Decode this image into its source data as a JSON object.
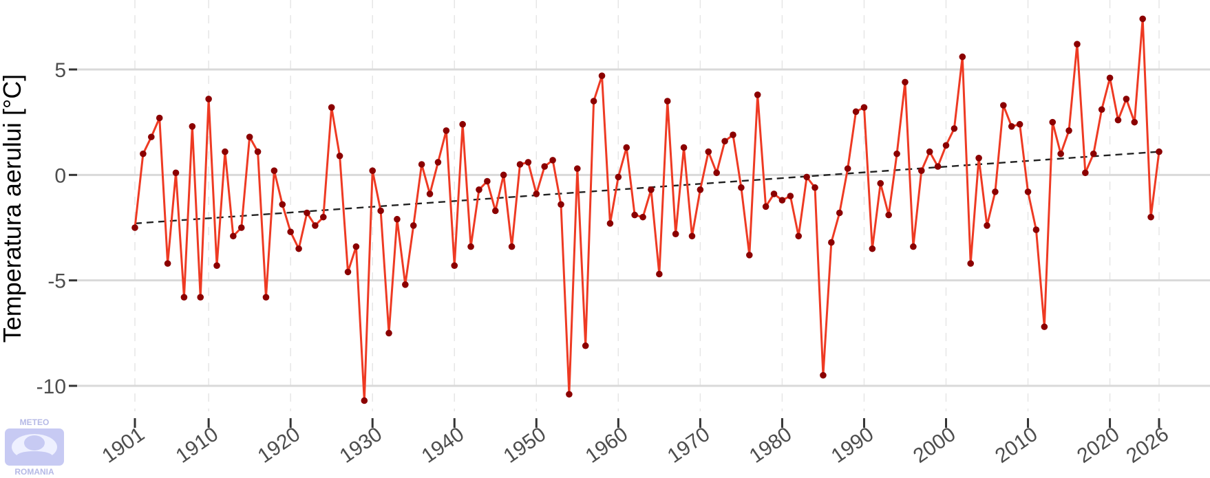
{
  "chart_data": {
    "type": "line",
    "title": "",
    "xlabel": "",
    "ylabel": "Temperatura aerului [°C]",
    "xlim": [
      1901,
      2026
    ],
    "ylim": [
      -11,
      8.2
    ],
    "x_ticks": [
      1901,
      1910,
      1920,
      1930,
      1940,
      1950,
      1960,
      1970,
      1980,
      1990,
      2000,
      2010,
      2020,
      2026
    ],
    "y_ticks": [
      -10,
      -5,
      0,
      5
    ],
    "grid": true,
    "legend": "none",
    "colors": {
      "line": "#ee3a23",
      "points": "#8b0000",
      "trend": "#222222",
      "grid": "#d9d9d9"
    },
    "series": [
      {
        "x": [
          1901,
          1902,
          1903,
          1904,
          1905,
          1906,
          1907,
          1908,
          1909,
          1910,
          1911,
          1912,
          1913,
          1914,
          1915,
          1916,
          1917,
          1918,
          1919,
          1920,
          1921,
          1922,
          1923,
          1924,
          1925,
          1926,
          1927,
          1928,
          1929,
          1930,
          1931,
          1932,
          1933,
          1934,
          1935,
          1936,
          1937,
          1938,
          1939,
          1940,
          1941,
          1942,
          1943,
          1944,
          1945,
          1946,
          1947,
          1948,
          1949,
          1950,
          1951,
          1952,
          1953,
          1954,
          1955,
          1956,
          1957,
          1958,
          1959,
          1960,
          1961,
          1962,
          1963,
          1964,
          1965,
          1966,
          1967,
          1968,
          1969,
          1970,
          1971,
          1972,
          1973,
          1974,
          1975,
          1976,
          1977,
          1978,
          1979,
          1980,
          1981,
          1982,
          1983,
          1984,
          1985,
          1986,
          1987,
          1988,
          1989,
          1990,
          1991,
          1992,
          1993,
          1994,
          1995,
          1996,
          1997,
          1998,
          1999,
          2000,
          2001,
          2002,
          2003,
          2004,
          2005,
          2006,
          2007,
          2008,
          2009,
          2010,
          2011,
          2012,
          2013,
          2014,
          2015,
          2016,
          2017,
          2018,
          2019,
          2020,
          2021,
          2022,
          2023,
          2024,
          2025,
          2026
        ],
        "y": [
          -2.5,
          1.0,
          1.8,
          2.7,
          -4.2,
          0.1,
          -5.8,
          2.3,
          -5.8,
          3.6,
          -4.3,
          1.1,
          -2.9,
          -2.5,
          1.8,
          1.1,
          -5.8,
          0.2,
          -1.4,
          -2.7,
          -3.5,
          -1.8,
          -2.4,
          -2.0,
          3.2,
          0.9,
          -4.6,
          -3.4,
          -10.7,
          0.2,
          -1.7,
          -7.5,
          -2.1,
          -5.2,
          -2.4,
          0.5,
          -0.9,
          0.6,
          2.1,
          -4.3,
          2.4,
          -3.4,
          -0.7,
          -0.3,
          -1.7,
          0.0,
          -3.4,
          0.5,
          0.6,
          -0.9,
          0.4,
          0.7,
          -1.4,
          -10.4,
          0.3,
          -8.1,
          3.5,
          4.7,
          -2.3,
          -0.1,
          1.3,
          -1.9,
          -2.0,
          -0.7,
          -4.7,
          3.5,
          -2.8,
          1.3,
          -2.9,
          -0.7,
          1.1,
          0.1,
          1.6,
          1.9,
          -0.6,
          -3.8,
          3.8,
          -1.5,
          -0.9,
          -1.2,
          -1.0,
          -2.9,
          -0.1,
          -0.6,
          -9.5,
          -3.2,
          -1.8,
          0.3,
          3.0,
          3.2,
          -3.5,
          -0.4,
          -1.9,
          1.0,
          4.4,
          -3.4,
          0.2,
          1.1,
          0.4,
          1.4,
          2.2,
          5.6,
          -4.2,
          0.8,
          -2.4,
          -0.8,
          3.3,
          2.3,
          2.4,
          -0.8,
          -2.6,
          -7.2,
          2.5,
          1.0,
          2.1,
          6.2,
          0.1,
          1.0,
          3.1,
          4.6,
          2.6,
          3.6,
          2.5,
          7.4,
          -2.0,
          1.1
        ]
      }
    ],
    "trend": {
      "x": [
        1901,
        2026
      ],
      "y": [
        -2.3,
        1.1
      ]
    }
  },
  "logo": {
    "line1": "METEO",
    "line2": "ROMANIA"
  }
}
